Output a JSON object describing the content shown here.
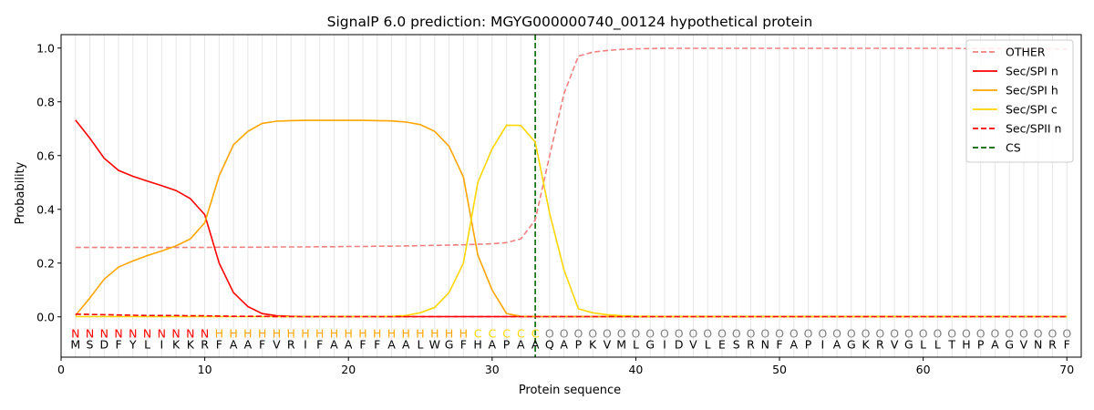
{
  "chart_data": {
    "type": "line",
    "title": "SignalP 6.0 prediction: MGYG000000740_00124 hypothetical protein",
    "xlabel": "Protein sequence",
    "ylabel": "Probability",
    "xlim": [
      0,
      71
    ],
    "ylim": [
      -0.15,
      1.05
    ],
    "x_ticks": [
      0,
      10,
      20,
      30,
      40,
      50,
      60,
      70
    ],
    "y_ticks": [
      0.0,
      0.2,
      0.4,
      0.6,
      0.8,
      1.0
    ],
    "grid": "vertical lines at each residue",
    "legend_position": "top-right",
    "sequence": [
      "M",
      "S",
      "D",
      "F",
      "Y",
      "L",
      "I",
      "K",
      "K",
      "R",
      "F",
      "A",
      "A",
      "F",
      "V",
      "R",
      "I",
      "F",
      "A",
      "A",
      "F",
      "F",
      "A",
      "A",
      "L",
      "W",
      "G",
      "F",
      "H",
      "A",
      "P",
      "A",
      "A",
      "Q",
      "A",
      "P",
      "K",
      "V",
      "M",
      "L",
      "G",
      "I",
      "D",
      "V",
      "L",
      "E",
      "S",
      "R",
      "N",
      "F",
      "A",
      "P",
      "I",
      "A",
      "G",
      "K",
      "R",
      "V",
      "G",
      "L",
      "L",
      "T",
      "H",
      "P",
      "A",
      "G",
      "V",
      "N",
      "R",
      "F"
    ],
    "region_labels": [
      "N",
      "N",
      "N",
      "N",
      "N",
      "N",
      "N",
      "N",
      "N",
      "N",
      "H",
      "H",
      "H",
      "H",
      "H",
      "H",
      "H",
      "H",
      "H",
      "H",
      "H",
      "H",
      "H",
      "H",
      "H",
      "H",
      "H",
      "H",
      "C",
      "C",
      "C",
      "C",
      "C",
      "O",
      "O",
      "O",
      "O",
      "O",
      "O",
      "O",
      "O",
      "O",
      "O",
      "O",
      "O",
      "O",
      "O",
      "O",
      "O",
      "O",
      "O",
      "O",
      "O",
      "O",
      "O",
      "O",
      "O",
      "O",
      "O",
      "O",
      "O",
      "O",
      "O",
      "O",
      "O",
      "O",
      "O",
      "O",
      "O",
      "O"
    ],
    "region_colors": {
      "N": "#ff0000",
      "H": "#ffa500",
      "C": "#ffd700",
      "O": "#808080"
    },
    "cleavage_site": 33,
    "series": [
      {
        "name": "OTHER",
        "color": "#f08080",
        "dash": "dashed",
        "values": [
          0.258,
          0.258,
          0.258,
          0.258,
          0.258,
          0.258,
          0.258,
          0.258,
          0.258,
          0.258,
          0.259,
          0.259,
          0.259,
          0.259,
          0.26,
          0.26,
          0.26,
          0.261,
          0.261,
          0.262,
          0.262,
          0.263,
          0.263,
          0.264,
          0.265,
          0.266,
          0.267,
          0.268,
          0.27,
          0.272,
          0.276,
          0.29,
          0.36,
          0.6,
          0.83,
          0.97,
          0.985,
          0.991,
          0.995,
          0.997,
          0.998,
          0.999,
          0.999,
          0.999,
          0.999,
          0.999,
          0.999,
          0.999,
          0.999,
          0.999,
          0.999,
          0.999,
          0.999,
          0.999,
          0.999,
          0.999,
          0.999,
          0.999,
          0.999,
          0.999,
          0.999,
          0.999,
          0.998,
          0.998,
          0.998,
          0.998,
          0.997,
          0.997,
          0.997,
          0.996
        ]
      },
      {
        "name": "Sec/SPI n",
        "color": "#ff0000",
        "dash": "solid",
        "values": [
          0.732,
          0.665,
          0.59,
          0.545,
          0.523,
          0.505,
          0.488,
          0.47,
          0.44,
          0.38,
          0.2,
          0.09,
          0.038,
          0.012,
          0.004,
          0.002,
          0.001,
          0.001,
          0.001,
          0.001,
          0.001,
          0.001,
          0.001,
          0.001,
          0.001,
          0.001,
          0.001,
          0.001,
          0.001,
          0.001,
          0.001,
          0.001,
          0.001,
          0.001,
          0.001,
          0.001,
          0.001,
          0.001,
          0.001,
          0.001,
          0.001,
          0.001,
          0.001,
          0.001,
          0.001,
          0.001,
          0.001,
          0.001,
          0.001,
          0.001,
          0.001,
          0.001,
          0.001,
          0.001,
          0.001,
          0.001,
          0.001,
          0.001,
          0.001,
          0.001,
          0.001,
          0.001,
          0.001,
          0.001,
          0.001,
          0.001,
          0.001,
          0.001,
          0.001,
          0.001
        ]
      },
      {
        "name": "Sec/SPI h",
        "color": "#ffa500",
        "dash": "solid",
        "values": [
          0.005,
          0.07,
          0.14,
          0.185,
          0.208,
          0.228,
          0.245,
          0.264,
          0.29,
          0.35,
          0.525,
          0.64,
          0.69,
          0.72,
          0.728,
          0.73,
          0.731,
          0.731,
          0.731,
          0.731,
          0.731,
          0.73,
          0.729,
          0.725,
          0.715,
          0.69,
          0.635,
          0.52,
          0.23,
          0.1,
          0.012,
          0.002,
          0.001,
          0.001,
          0.001,
          0.001,
          0.001,
          0.001,
          0.001,
          0.001,
          0.001,
          0.001,
          0.001,
          0.001,
          0.001,
          0.001,
          0.001,
          0.001,
          0.001,
          0.001,
          0.001,
          0.001,
          0.001,
          0.001,
          0.001,
          0.001,
          0.001,
          0.001,
          0.001,
          0.001,
          0.001,
          0.001,
          0.001,
          0.001,
          0.001,
          0.001,
          0.001,
          0.001,
          0.001,
          0.001
        ]
      },
      {
        "name": "Sec/SPI c",
        "color": "#ffd700",
        "dash": "solid",
        "values": [
          0.001,
          0.001,
          0.001,
          0.001,
          0.001,
          0.001,
          0.001,
          0.001,
          0.001,
          0.001,
          0.001,
          0.001,
          0.001,
          0.001,
          0.001,
          0.001,
          0.001,
          0.001,
          0.001,
          0.001,
          0.001,
          0.001,
          0.002,
          0.005,
          0.015,
          0.035,
          0.09,
          0.2,
          0.5,
          0.625,
          0.713,
          0.712,
          0.65,
          0.385,
          0.175,
          0.03,
          0.015,
          0.008,
          0.004,
          0.002,
          0.002,
          0.001,
          0.001,
          0.001,
          0.001,
          0.001,
          0.001,
          0.001,
          0.001,
          0.001,
          0.001,
          0.001,
          0.001,
          0.001,
          0.001,
          0.001,
          0.001,
          0.001,
          0.001,
          0.001,
          0.001,
          0.001,
          0.001,
          0.001,
          0.001,
          0.001,
          0.001,
          0.001,
          0.001,
          0.001
        ]
      },
      {
        "name": "Sec/SPII n",
        "color": "#ff0000",
        "dash": "dashed",
        "values": [
          0.01,
          0.009,
          0.008,
          0.007,
          0.006,
          0.005,
          0.005,
          0.005,
          0.004,
          0.004,
          0.003,
          0.002,
          0.002,
          0.002,
          0.001,
          0.001,
          0.001,
          0.001,
          0.001,
          0.001,
          0.001,
          0.001,
          0.001,
          0.001,
          0.001,
          0.001,
          0.001,
          0.001,
          0.001,
          0.001,
          0.001,
          0.001,
          0.001,
          0.001,
          0.001,
          0.001,
          0.001,
          0.001,
          0.001,
          0.001,
          0.001,
          0.001,
          0.001,
          0.001,
          0.001,
          0.001,
          0.001,
          0.001,
          0.001,
          0.001,
          0.001,
          0.001,
          0.001,
          0.001,
          0.001,
          0.001,
          0.001,
          0.001,
          0.001,
          0.001,
          0.001,
          0.001,
          0.001,
          0.001,
          0.001,
          0.001,
          0.001,
          0.001,
          0.001,
          0.001
        ]
      }
    ],
    "cs_series": {
      "name": "CS",
      "color": "#006400",
      "dash": "dashed"
    }
  }
}
